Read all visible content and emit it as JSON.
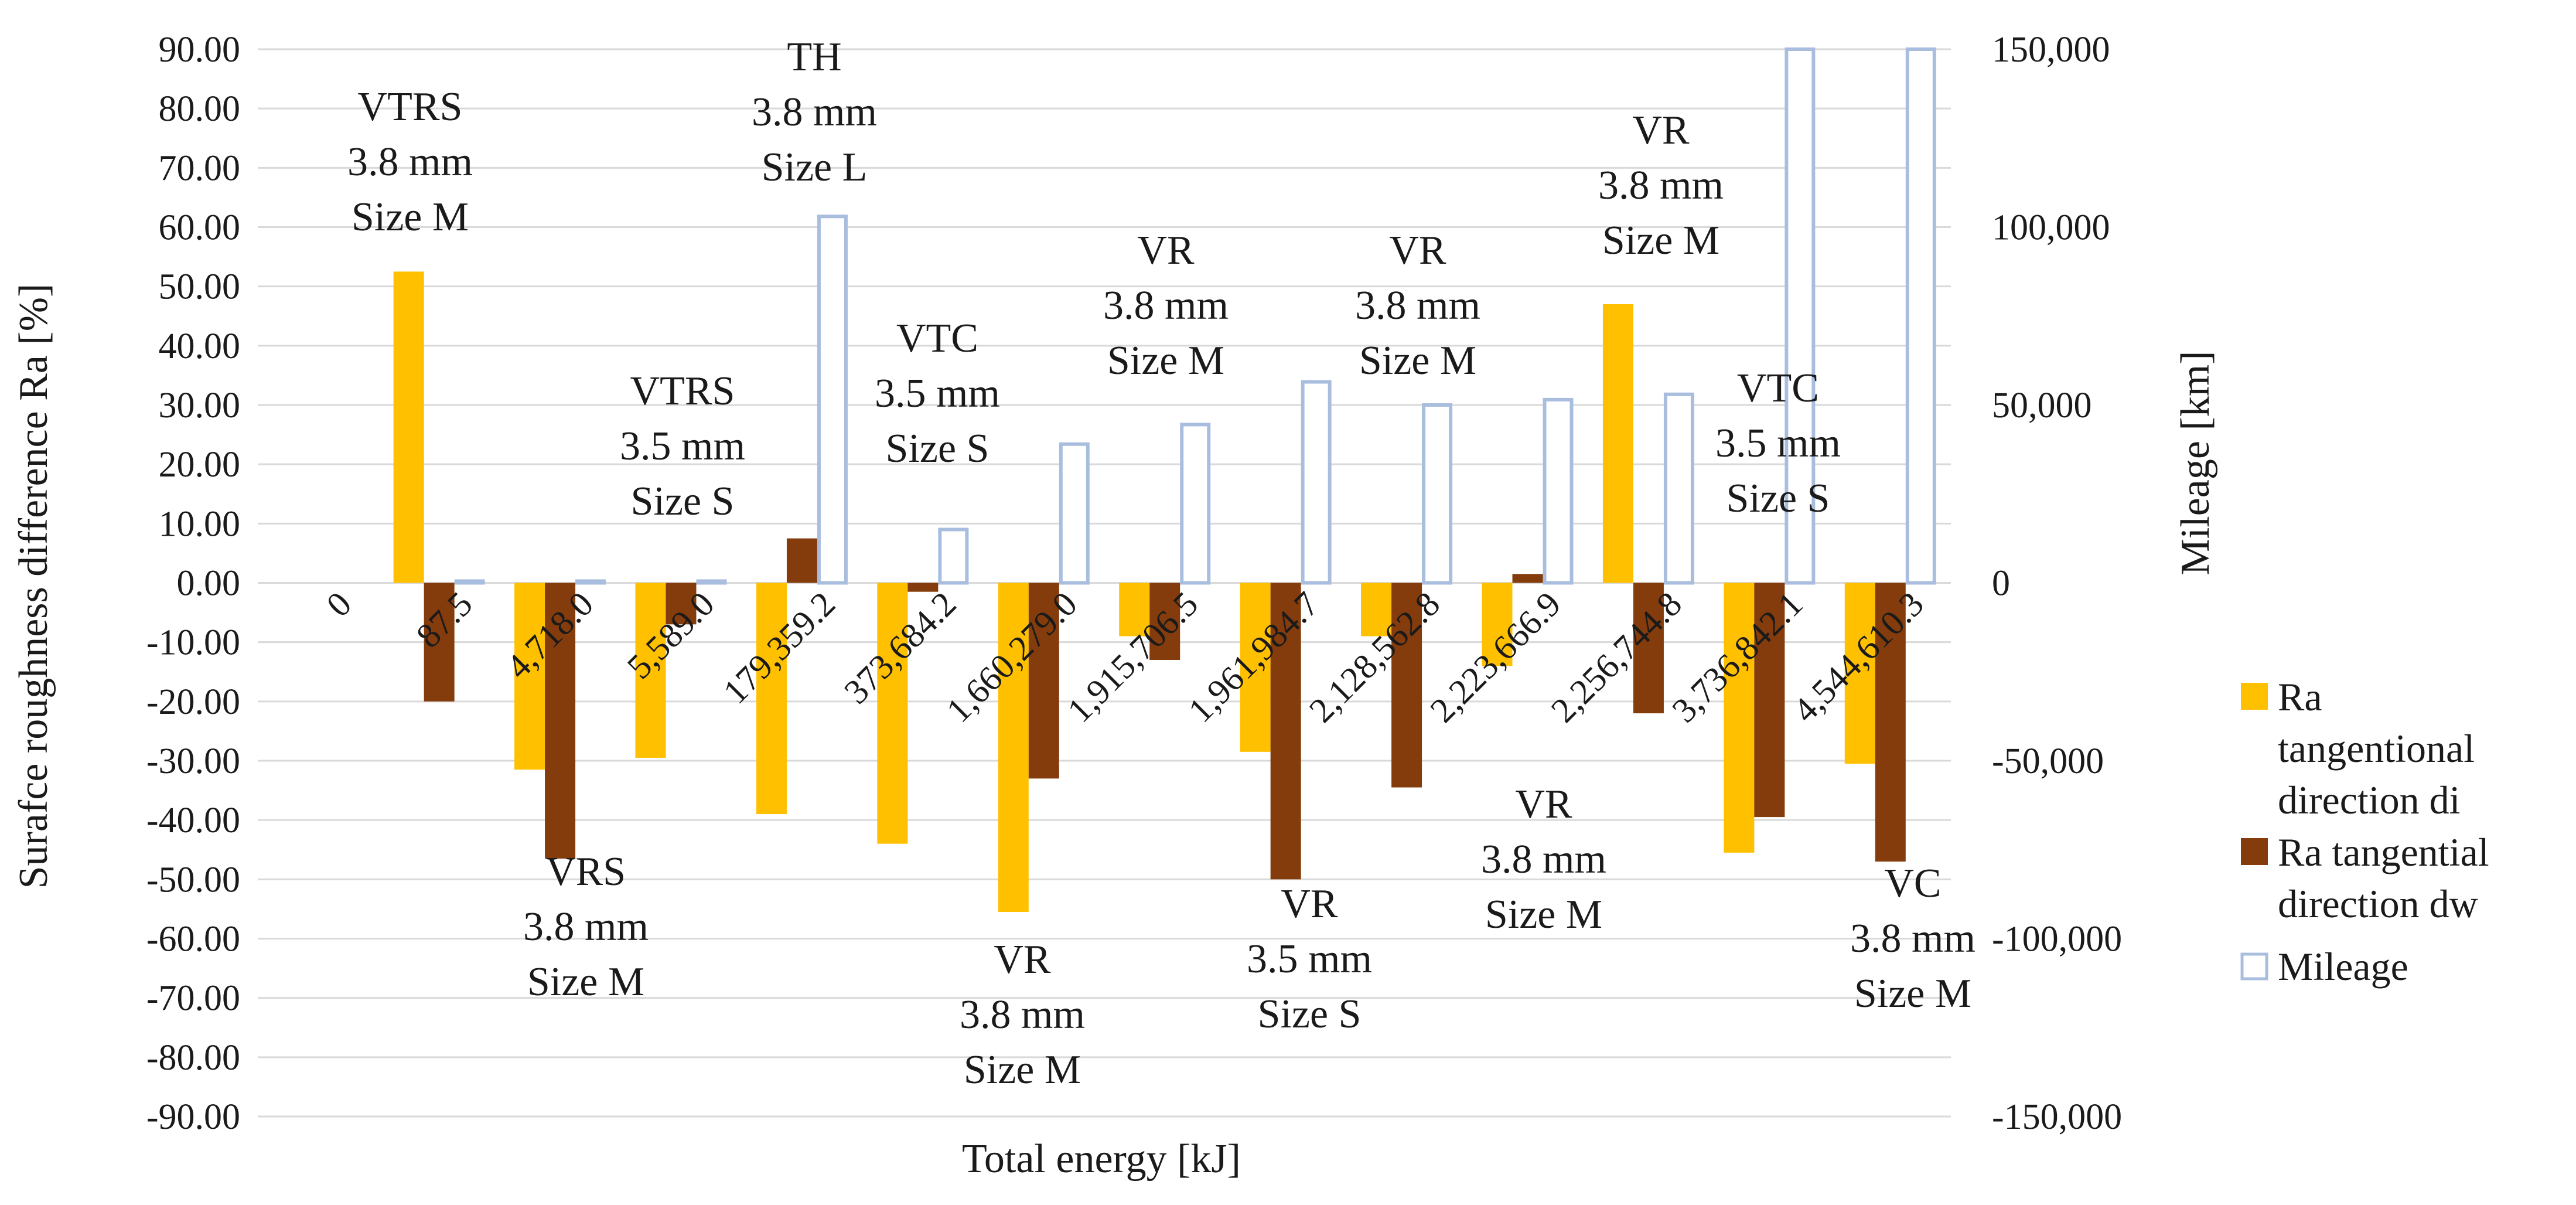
{
  "chart_data": {
    "type": "bar",
    "title": "",
    "xlabel": "Total energy [kJ]",
    "ylabel": "Surafce roughness difference  Ra [%]",
    "y2label": "Mileage [km]",
    "ylim": [
      -90,
      90
    ],
    "y_ticks": [
      90,
      80,
      70,
      60,
      50,
      40,
      30,
      20,
      10,
      0,
      -10,
      -20,
      -30,
      -40,
      -50,
      -60,
      -70,
      -80,
      -90
    ],
    "y_tick_labels": [
      "90.00",
      "80.00",
      "70.00",
      "60.00",
      "50.00",
      "40.00",
      "30.00",
      "20.00",
      "10.00",
      "0.00",
      "-10.00",
      "-20.00",
      "-30.00",
      "-40.00",
      "-50.00",
      "-60.00",
      "-70.00",
      "-80.00",
      "-90.00"
    ],
    "y2lim": [
      -150000,
      150000
    ],
    "y2_ticks": [
      150000,
      100000,
      50000,
      0,
      -50000,
      -100000,
      -150000
    ],
    "y2_tick_labels": [
      "150,000",
      "100,000",
      "50,000",
      "0",
      "-50,000",
      "-100,000",
      "-150,000"
    ],
    "categories": [
      "0",
      "87.5",
      "4,718.0",
      "5,589.0",
      "179,359.2",
      "373,684.2",
      "1,660,279.0",
      "1,915,706.5",
      "1,961,984.7",
      "2,128,562.8",
      "2,223,666.9",
      "2,256,744.8",
      "3,736,842.1",
      "4,544,610.3"
    ],
    "series": [
      {
        "name": "Ra tangentional direction di",
        "color": "#FFC000",
        "axis": "left",
        "values": [
          0,
          52.5,
          -31.5,
          -29.5,
          -39.0,
          -44.0,
          -55.5,
          -9.0,
          -28.5,
          -9.0,
          -14.0,
          47.0,
          -45.5,
          -30.5
        ]
      },
      {
        "name": "Ra tangential direction dw",
        "color": "#843C0C",
        "axis": "left",
        "values": [
          0,
          -20.0,
          -46.5,
          -7.0,
          7.5,
          -1.5,
          -33.0,
          -13.0,
          -50.0,
          -34.5,
          1.5,
          -22.0,
          -39.5,
          -47.0
        ]
      },
      {
        "name": "Mileage",
        "color": "#A9BEDE",
        "axis": "right",
        "style": "outline",
        "values": [
          0,
          500,
          500,
          500,
          103000,
          15000,
          39000,
          44500,
          56500,
          50000,
          51500,
          53000,
          150000,
          150000
        ]
      }
    ],
    "annotations": [
      {
        "category": "87.5",
        "side": "above",
        "lines": [
          "VTRS",
          "3.8 mm",
          "Size M"
        ]
      },
      {
        "category": "4,718.0",
        "side": "below",
        "lines": [
          "VRS",
          "3.8 mm",
          "Size M"
        ]
      },
      {
        "category": "5,589.0",
        "side": "above",
        "lines": [
          "VTRS",
          "3.5 mm",
          "Size S"
        ]
      },
      {
        "category": "179,359.2",
        "side": "above",
        "lines": [
          "TH",
          "3.8 mm",
          "Size L"
        ]
      },
      {
        "category": "373,684.2",
        "side": "above",
        "lines": [
          "VTC",
          "3.5 mm",
          "Size S"
        ]
      },
      {
        "category": "1,660,279.0",
        "side": "below",
        "lines": [
          "VR",
          "3.8 mm",
          "Size M"
        ]
      },
      {
        "category": "1,915,706.5",
        "side": "above",
        "lines": [
          "VR",
          "3.8 mm",
          "Size M"
        ]
      },
      {
        "category": "1,961,984.7",
        "side": "below",
        "lines": [
          "VR",
          "3.5 mm",
          "Size S"
        ]
      },
      {
        "category": "2,128,562.8",
        "side": "above",
        "lines": [
          "VR",
          "3.8 mm",
          "Size M"
        ]
      },
      {
        "category": "2,223,666.9",
        "side": "below",
        "lines": [
          "VR",
          "3.8 mm",
          "Size M"
        ]
      },
      {
        "category": "2,256,744.8",
        "side": "above",
        "lines": [
          "VR",
          "3.8 mm",
          "Size M"
        ]
      },
      {
        "category": "3,736,842.1",
        "side": "above",
        "lines": [
          "VTC",
          "3.5 mm",
          "Size S"
        ]
      },
      {
        "category": "4,544,610.3",
        "side": "below",
        "lines": [
          "VC",
          "3.8 mm",
          "Size M"
        ]
      }
    ],
    "legend": {
      "position": "right",
      "entries": [
        {
          "lines": [
            "Ra",
            "tangentional",
            "direction di"
          ],
          "series": "Ra tangentional direction di"
        },
        {
          "lines": [
            "Ra tangential",
            "direction dw"
          ],
          "series": "Ra tangential direction dw"
        },
        {
          "lines": [
            "Mileage"
          ],
          "series": "Mileage"
        }
      ]
    },
    "grid": true
  }
}
